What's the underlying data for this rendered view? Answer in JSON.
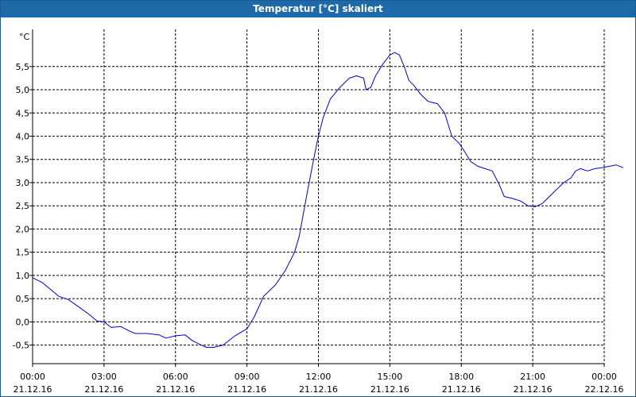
{
  "window": {
    "title": "Temperatur [°C] skaliert"
  },
  "chart_data": {
    "type": "line",
    "title": "Temperatur [°C] skaliert",
    "ylabel": "°C",
    "xlabel": "",
    "ylim": [
      -0.9,
      6.3
    ],
    "xlim": [
      0,
      24
    ],
    "grid": true,
    "colors": {
      "line": "#0000cc",
      "grid": "#000000",
      "frame": "#000000",
      "title_bg": "#1e6aa8"
    },
    "y_ticks": [
      {
        "value": -0.5,
        "label": "-0,5"
      },
      {
        "value": 0.0,
        "label": "0,0"
      },
      {
        "value": 0.5,
        "label": "0,5"
      },
      {
        "value": 1.0,
        "label": "1,0"
      },
      {
        "value": 1.5,
        "label": "1,5"
      },
      {
        "value": 2.0,
        "label": "2,0"
      },
      {
        "value": 2.5,
        "label": "2,5"
      },
      {
        "value": 3.0,
        "label": "3,0"
      },
      {
        "value": 3.5,
        "label": "3,5"
      },
      {
        "value": 4.0,
        "label": "4,0"
      },
      {
        "value": 4.5,
        "label": "4,5"
      },
      {
        "value": 5.0,
        "label": "5,0"
      },
      {
        "value": 5.5,
        "label": "5,5"
      }
    ],
    "x_ticks": [
      {
        "value": 0,
        "time": "00:00",
        "date": "21.12.16"
      },
      {
        "value": 3,
        "time": "03:00",
        "date": "21.12.16"
      },
      {
        "value": 6,
        "time": "06:00",
        "date": "21.12.16"
      },
      {
        "value": 9,
        "time": "09:00",
        "date": "21.12.16"
      },
      {
        "value": 12,
        "time": "12:00",
        "date": "21.12.16"
      },
      {
        "value": 15,
        "time": "15:00",
        "date": "21.12.16"
      },
      {
        "value": 18,
        "time": "18:00",
        "date": "21.12.16"
      },
      {
        "value": 21,
        "time": "21:00",
        "date": "21.12.16"
      },
      {
        "value": 24,
        "time": "00:00",
        "date": "22.12.16"
      }
    ],
    "series": [
      {
        "points": [
          [
            0.0,
            0.95
          ],
          [
            0.4,
            0.85
          ],
          [
            0.8,
            0.68
          ],
          [
            1.1,
            0.55
          ],
          [
            1.5,
            0.48
          ],
          [
            2.0,
            0.3
          ],
          [
            2.4,
            0.15
          ],
          [
            2.7,
            0.02
          ],
          [
            3.0,
            0.0
          ],
          [
            3.3,
            -0.12
          ],
          [
            3.7,
            -0.1
          ],
          [
            4.0,
            -0.18
          ],
          [
            4.3,
            -0.25
          ],
          [
            4.8,
            -0.25
          ],
          [
            5.3,
            -0.28
          ],
          [
            5.6,
            -0.35
          ],
          [
            6.0,
            -0.3
          ],
          [
            6.4,
            -0.28
          ],
          [
            6.7,
            -0.4
          ],
          [
            7.0,
            -0.48
          ],
          [
            7.3,
            -0.55
          ],
          [
            7.6,
            -0.55
          ],
          [
            8.0,
            -0.5
          ],
          [
            8.5,
            -0.3
          ],
          [
            9.0,
            -0.15
          ],
          [
            9.3,
            0.1
          ],
          [
            9.7,
            0.55
          ],
          [
            10.2,
            0.8
          ],
          [
            10.6,
            1.1
          ],
          [
            11.0,
            1.5
          ],
          [
            11.2,
            1.85
          ],
          [
            11.5,
            2.7
          ],
          [
            11.8,
            3.5
          ],
          [
            12.0,
            4.0
          ],
          [
            12.2,
            4.4
          ],
          [
            12.5,
            4.8
          ],
          [
            12.9,
            5.05
          ],
          [
            13.3,
            5.25
          ],
          [
            13.6,
            5.3
          ],
          [
            13.9,
            5.25
          ],
          [
            14.0,
            5.0
          ],
          [
            14.2,
            5.05
          ],
          [
            14.4,
            5.3
          ],
          [
            14.7,
            5.55
          ],
          [
            15.0,
            5.75
          ],
          [
            15.2,
            5.8
          ],
          [
            15.4,
            5.75
          ],
          [
            15.6,
            5.5
          ],
          [
            15.8,
            5.2
          ],
          [
            16.0,
            5.1
          ],
          [
            16.3,
            4.9
          ],
          [
            16.6,
            4.75
          ],
          [
            17.0,
            4.7
          ],
          [
            17.3,
            4.5
          ],
          [
            17.6,
            4.0
          ],
          [
            17.9,
            3.85
          ],
          [
            18.1,
            3.7
          ],
          [
            18.4,
            3.45
          ],
          [
            18.7,
            3.35
          ],
          [
            19.0,
            3.3
          ],
          [
            19.3,
            3.25
          ],
          [
            19.6,
            2.95
          ],
          [
            19.8,
            2.7
          ],
          [
            20.2,
            2.65
          ],
          [
            20.5,
            2.6
          ],
          [
            20.8,
            2.5
          ],
          [
            21.1,
            2.48
          ],
          [
            21.4,
            2.55
          ],
          [
            21.7,
            2.7
          ],
          [
            22.0,
            2.85
          ],
          [
            22.3,
            3.0
          ],
          [
            22.6,
            3.1
          ],
          [
            22.8,
            3.25
          ],
          [
            23.0,
            3.3
          ],
          [
            23.3,
            3.25
          ],
          [
            23.6,
            3.3
          ],
          [
            23.9,
            3.32
          ],
          [
            24.2,
            3.35
          ],
          [
            24.5,
            3.38
          ],
          [
            24.8,
            3.32
          ]
        ]
      }
    ]
  }
}
